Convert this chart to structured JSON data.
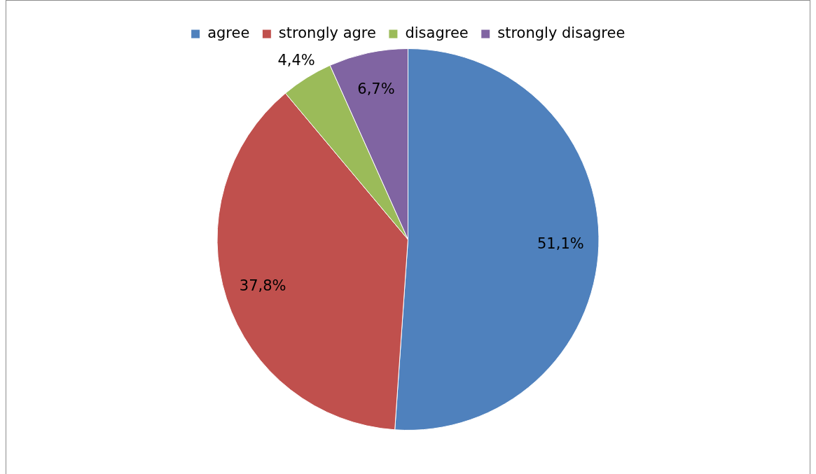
{
  "chart_data": {
    "type": "pie",
    "categories": [
      "agree",
      "strongly agre",
      "disagree",
      "strongly disagree"
    ],
    "values": [
      51.1,
      37.8,
      4.4,
      6.7
    ],
    "colors": [
      "#4f81bd",
      "#c0504d",
      "#9bbb59",
      "#8064a2"
    ],
    "value_labels": [
      "51,1%",
      "37,8%",
      "4,4%",
      "6,7%"
    ],
    "legend": "top"
  }
}
